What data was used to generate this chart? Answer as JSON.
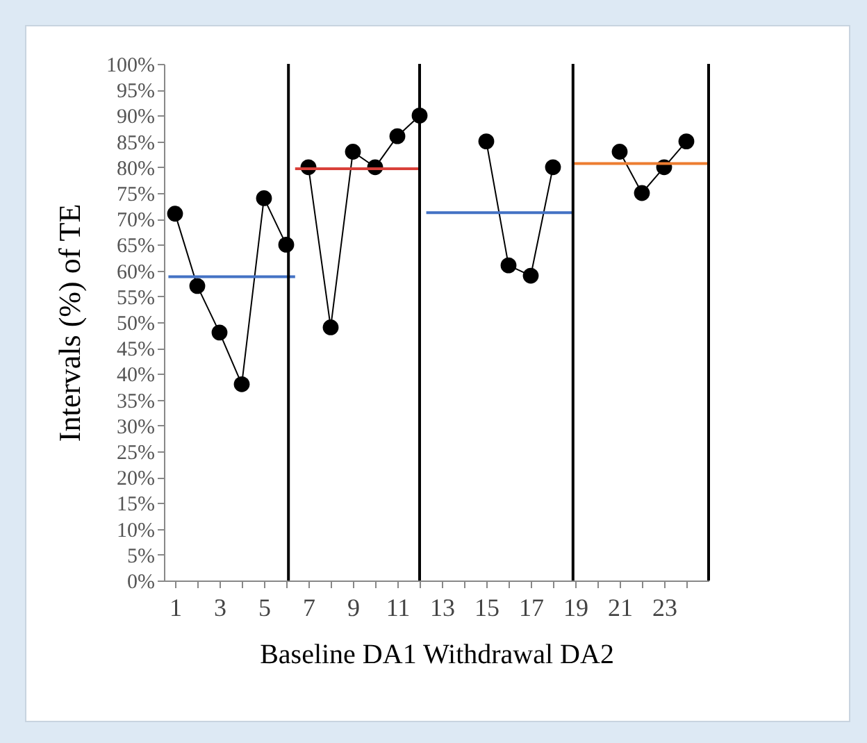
{
  "chart_data": {
    "type": "line",
    "xlabel": "Baseline DA1 Withdrawal  DA2",
    "ylabel": "Intervals (%) of TE",
    "xlim": [
      0.5,
      25
    ],
    "xticks": [
      {
        "value": 1,
        "label": "1"
      },
      {
        "value": 2,
        "label": null
      },
      {
        "value": 3,
        "label": "3"
      },
      {
        "value": 4,
        "label": null
      },
      {
        "value": 5,
        "label": "5"
      },
      {
        "value": 6,
        "label": null
      },
      {
        "value": 7,
        "label": "7"
      },
      {
        "value": 8,
        "label": null
      },
      {
        "value": 9,
        "label": "9"
      },
      {
        "value": 10,
        "label": null
      },
      {
        "value": 11,
        "label": "11"
      },
      {
        "value": 12,
        "label": null
      },
      {
        "value": 13,
        "label": "13"
      },
      {
        "value": 14,
        "label": null
      },
      {
        "value": 15,
        "label": "15"
      },
      {
        "value": 16,
        "label": null
      },
      {
        "value": 17,
        "label": "17"
      },
      {
        "value": 18,
        "label": null
      },
      {
        "value": 19,
        "label": "19"
      },
      {
        "value": 20,
        "label": null
      },
      {
        "value": 21,
        "label": "21"
      },
      {
        "value": 22,
        "label": null
      },
      {
        "value": 23,
        "label": "23"
      },
      {
        "value": 24,
        "label": null
      }
    ],
    "ylim": [
      0,
      100
    ],
    "yticks": [
      {
        "value": 0,
        "label": "0%"
      },
      {
        "value": 5,
        "label": "5%"
      },
      {
        "value": 10,
        "label": "10%"
      },
      {
        "value": 15,
        "label": "15%"
      },
      {
        "value": 20,
        "label": "20%"
      },
      {
        "value": 25,
        "label": "25%"
      },
      {
        "value": 30,
        "label": "30%"
      },
      {
        "value": 35,
        "label": "35%"
      },
      {
        "value": 40,
        "label": "40%"
      },
      {
        "value": 45,
        "label": "45%"
      },
      {
        "value": 50,
        "label": "50%"
      },
      {
        "value": 55,
        "label": "55%"
      },
      {
        "value": 60,
        "label": "60%"
      },
      {
        "value": 65,
        "label": "65%"
      },
      {
        "value": 70,
        "label": "70%"
      },
      {
        "value": 75,
        "label": "75%"
      },
      {
        "value": 80,
        "label": "80%"
      },
      {
        "value": 85,
        "label": "85%"
      },
      {
        "value": 90,
        "label": "90%"
      },
      {
        "value": 95,
        "label": "95%"
      },
      {
        "value": 100,
        "label": "100%"
      }
    ],
    "grid": false,
    "marker": "circle",
    "line_style": "solid",
    "series": [
      {
        "color": "#000000",
        "x": [
          1,
          2,
          3,
          4,
          5,
          6
        ],
        "values": [
          71,
          57,
          48,
          38,
          74,
          65
        ]
      },
      {
        "color": "#000000",
        "x": [
          7,
          8,
          9,
          10,
          11,
          12
        ],
        "values": [
          80,
          49,
          83,
          80,
          86,
          90
        ]
      },
      {
        "color": "#000000",
        "x": [
          15,
          16,
          17,
          18
        ],
        "values": [
          85,
          61,
          59,
          80
        ]
      },
      {
        "color": "#000000",
        "x": [
          21,
          22,
          23,
          24
        ],
        "values": [
          83,
          75,
          80,
          85
        ]
      },
      {
        "color": "#4472c4",
        "marker": "none",
        "x": [
          0.7,
          6.4
        ],
        "values": [
          58.8,
          58.8
        ]
      },
      {
        "color": "#d9403a",
        "marker": "none",
        "x": [
          6.4,
          12
        ],
        "values": [
          79.7,
          79.7
        ]
      },
      {
        "color": "#4472c4",
        "marker": "none",
        "x": [
          12.3,
          18.9
        ],
        "values": [
          71.2,
          71.2
        ]
      },
      {
        "color": "#ed7d31",
        "marker": "none",
        "x": [
          18.9,
          25
        ],
        "values": [
          80.7,
          80.7
        ]
      }
    ],
    "ref_lines": [
      {
        "axis": "x",
        "value": 6.1,
        "color": "#000000"
      },
      {
        "axis": "x",
        "value": 12,
        "color": "#000000"
      },
      {
        "axis": "x",
        "value": 18.9,
        "color": "#000000"
      },
      {
        "axis": "x",
        "value": 25,
        "color": "#000000"
      }
    ]
  }
}
